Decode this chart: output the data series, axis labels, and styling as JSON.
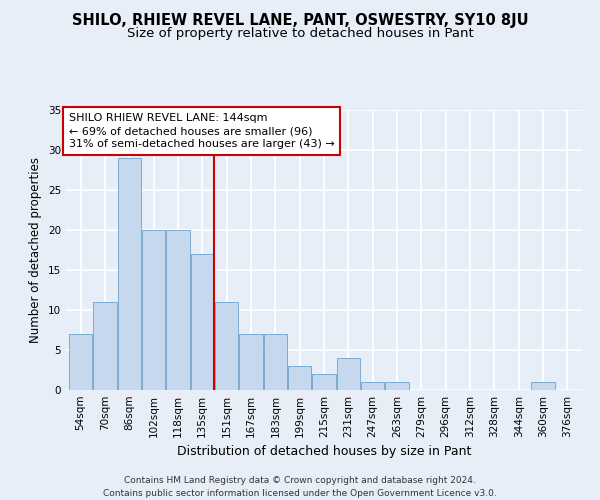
{
  "title": "SHILO, RHIEW REVEL LANE, PANT, OSWESTRY, SY10 8JU",
  "subtitle": "Size of property relative to detached houses in Pant",
  "xlabel": "Distribution of detached houses by size in Pant",
  "ylabel": "Number of detached properties",
  "footer_line1": "Contains HM Land Registry data © Crown copyright and database right 2024.",
  "footer_line2": "Contains public sector information licensed under the Open Government Licence v3.0.",
  "categories": [
    "54sqm",
    "70sqm",
    "86sqm",
    "102sqm",
    "118sqm",
    "135sqm",
    "151sqm",
    "167sqm",
    "183sqm",
    "199sqm",
    "215sqm",
    "231sqm",
    "247sqm",
    "263sqm",
    "279sqm",
    "296sqm",
    "312sqm",
    "328sqm",
    "344sqm",
    "360sqm",
    "376sqm"
  ],
  "values": [
    7,
    11,
    29,
    20,
    20,
    17,
    11,
    7,
    7,
    3,
    2,
    4,
    1,
    1,
    0,
    0,
    0,
    0,
    0,
    1,
    0
  ],
  "bar_color": "#c5d8ed",
  "bar_edge_color": "#7aadd4",
  "vline_color": "#cc0000",
  "vline_x": 5.5,
  "annotation_line1": "SHILO RHIEW REVEL LANE: 144sqm",
  "annotation_line2": "← 69% of detached houses are smaller (96)",
  "annotation_line3": "31% of semi-detached houses are larger (43) →",
  "annotation_box_color": "white",
  "annotation_box_edgecolor": "#cc0000",
  "ylim": [
    0,
    35
  ],
  "yticks": [
    0,
    5,
    10,
    15,
    20,
    25,
    30,
    35
  ],
  "background_color": "#e8eef8",
  "grid_color": "white",
  "title_fontsize": 10.5,
  "subtitle_fontsize": 9.5,
  "ylabel_fontsize": 8.5,
  "xlabel_fontsize": 9,
  "tick_fontsize": 7.5,
  "annotation_fontsize": 8,
  "footer_fontsize": 6.5
}
